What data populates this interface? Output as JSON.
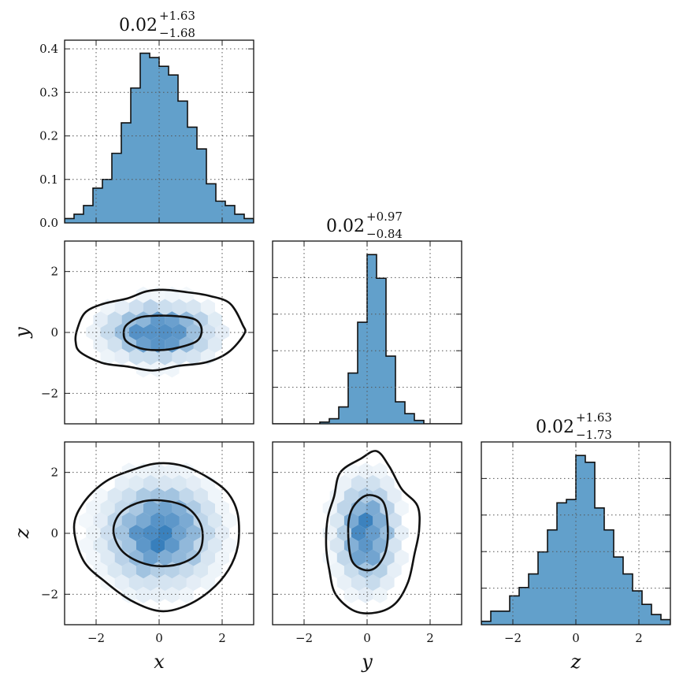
{
  "chart_data": {
    "type": "corner",
    "variables": [
      "x",
      "y",
      "z"
    ],
    "axis_labels": {
      "x": "x",
      "y": "y",
      "z": "z"
    },
    "ranges": {
      "x": [
        -3,
        3
      ],
      "y": [
        -3,
        3
      ],
      "z": [
        -3,
        3
      ]
    },
    "ticks": [
      -2,
      0,
      2
    ],
    "tick_labels": [
      "−2",
      "0",
      "2"
    ],
    "grid": true,
    "hist_color": "#62a0cb",
    "hex_color": "#1f6fb4",
    "contour_color": "#111111",
    "titles": {
      "x": {
        "median": "0.02",
        "plus": "+1.63",
        "minus": "−1.68"
      },
      "y": {
        "median": "0.02",
        "plus": "+0.97",
        "minus": "−0.84"
      },
      "z": {
        "median": "0.02",
        "plus": "+1.63",
        "minus": "−1.73"
      }
    },
    "hist_x": {
      "ylim": [
        0,
        0.42
      ],
      "yticks": [
        0.0,
        0.1,
        0.2,
        0.3,
        0.4
      ],
      "ytick_labels": [
        "0.0",
        "0.1",
        "0.2",
        "0.3",
        "0.4"
      ],
      "bin_edges": [
        -3,
        -2.7,
        -2.4,
        -2.1,
        -1.8,
        -1.5,
        -1.2,
        -0.9,
        -0.6,
        -0.3,
        0,
        0.3,
        0.6,
        0.9,
        1.2,
        1.5,
        1.8,
        2.1,
        2.4,
        2.7,
        3
      ],
      "values": [
        0.01,
        0.02,
        0.04,
        0.08,
        0.1,
        0.16,
        0.23,
        0.31,
        0.39,
        0.38,
        0.36,
        0.34,
        0.28,
        0.22,
        0.17,
        0.09,
        0.05,
        0.04,
        0.02,
        0.01
      ]
    },
    "hist_y": {
      "bin_edges": [
        -3,
        -2.7,
        -2.4,
        -2.1,
        -1.8,
        -1.5,
        -1.2,
        -0.9,
        -0.6,
        -0.3,
        0,
        0.3,
        0.6,
        0.9,
        1.2,
        1.5,
        1.8,
        2.1,
        2.4,
        2.7,
        3
      ],
      "values": [
        0,
        0,
        0,
        0,
        0,
        0.01,
        0.03,
        0.1,
        0.3,
        0.6,
        1.0,
        0.86,
        0.4,
        0.13,
        0.06,
        0.02,
        0,
        0,
        0,
        0
      ]
    },
    "hist_z": {
      "bin_edges": [
        -3,
        -2.7,
        -2.4,
        -2.1,
        -1.8,
        -1.5,
        -1.2,
        -0.9,
        -0.6,
        -0.3,
        0,
        0.3,
        0.6,
        0.9,
        1.2,
        1.5,
        1.8,
        2.1,
        2.4,
        2.7,
        3
      ],
      "values": [
        0.02,
        0.08,
        0.08,
        0.17,
        0.22,
        0.3,
        0.43,
        0.56,
        0.72,
        0.74,
        1.0,
        0.96,
        0.69,
        0.56,
        0.4,
        0.3,
        0.2,
        0.12,
        0.06,
        0.03
      ]
    },
    "panel_xy": {
      "sigma": [
        1.0,
        0.55
      ],
      "contours": [
        {
          "level": "inner",
          "points": [
            [
              -1.12,
              0.05
            ],
            [
              -1.0,
              0.28
            ],
            [
              -0.6,
              0.5
            ],
            [
              0,
              0.55
            ],
            [
              0.6,
              0.53
            ],
            [
              1.15,
              0.42
            ],
            [
              1.35,
              0.1
            ],
            [
              1.2,
              -0.28
            ],
            [
              0.6,
              -0.5
            ],
            [
              0,
              -0.58
            ],
            [
              -0.6,
              -0.52
            ],
            [
              -1.05,
              -0.28
            ]
          ]
        },
        {
          "level": "outer",
          "points": [
            [
              -2.6,
              0.1
            ],
            [
              -2.35,
              0.65
            ],
            [
              -1.8,
              0.93
            ],
            [
              -1.0,
              1.12
            ],
            [
              -0.4,
              1.35
            ],
            [
              0.2,
              1.4
            ],
            [
              0.9,
              1.32
            ],
            [
              1.6,
              1.2
            ],
            [
              2.25,
              0.95
            ],
            [
              2.65,
              0.25
            ],
            [
              2.7,
              -0.05
            ],
            [
              2.2,
              -0.65
            ],
            [
              1.5,
              -0.98
            ],
            [
              0.6,
              -1.1
            ],
            [
              -0.2,
              -1.25
            ],
            [
              -1.0,
              -1.12
            ],
            [
              -1.8,
              -1.0
            ],
            [
              -2.5,
              -0.65
            ],
            [
              -2.65,
              -0.3
            ]
          ]
        }
      ]
    },
    "panel_xz": {
      "sigma": [
        1.0,
        1.0
      ],
      "contours": [
        {
          "level": "inner",
          "points": [
            [
              -1.45,
              0.1
            ],
            [
              -1.2,
              0.7
            ],
            [
              -0.5,
              1.05
            ],
            [
              0.3,
              1.05
            ],
            [
              0.95,
              0.8
            ],
            [
              1.35,
              0.2
            ],
            [
              1.3,
              -0.55
            ],
            [
              0.8,
              -0.95
            ],
            [
              0.1,
              -1.08
            ],
            [
              -0.6,
              -0.95
            ],
            [
              -1.2,
              -0.55
            ]
          ]
        },
        {
          "level": "outer",
          "points": [
            [
              -2.7,
              0.2
            ],
            [
              -2.4,
              1.0
            ],
            [
              -1.7,
              1.7
            ],
            [
              -0.8,
              2.1
            ],
            [
              0,
              2.3
            ],
            [
              0.8,
              2.2
            ],
            [
              1.6,
              1.8
            ],
            [
              2.2,
              1.3
            ],
            [
              2.5,
              0.6
            ],
            [
              2.5,
              -0.4
            ],
            [
              2.2,
              -1.2
            ],
            [
              1.6,
              -1.9
            ],
            [
              0.8,
              -2.4
            ],
            [
              0,
              -2.55
            ],
            [
              -0.9,
              -2.2
            ],
            [
              -1.7,
              -1.6
            ],
            [
              -2.4,
              -0.9
            ]
          ]
        }
      ]
    },
    "panel_yz": {
      "sigma": [
        0.55,
        1.0
      ],
      "contours": [
        {
          "level": "inner",
          "points": [
            [
              -0.6,
              0.2
            ],
            [
              -0.45,
              0.85
            ],
            [
              0,
              1.25
            ],
            [
              0.5,
              1.05
            ],
            [
              0.65,
              0.3
            ],
            [
              0.6,
              -0.55
            ],
            [
              0.3,
              -1.1
            ],
            [
              -0.1,
              -1.2
            ],
            [
              -0.5,
              -0.85
            ]
          ]
        },
        {
          "level": "outer",
          "points": [
            [
              -1.05,
              1.2
            ],
            [
              -0.85,
              2.0
            ],
            [
              -0.2,
              2.45
            ],
            [
              0.3,
              2.7
            ],
            [
              0.7,
              2.2
            ],
            [
              1.1,
              1.45
            ],
            [
              1.6,
              0.9
            ],
            [
              1.65,
              0.1
            ],
            [
              1.5,
              -0.7
            ],
            [
              1.3,
              -1.6
            ],
            [
              0.9,
              -2.3
            ],
            [
              0.3,
              -2.6
            ],
            [
              -0.4,
              -2.55
            ],
            [
              -1.0,
              -2.0
            ],
            [
              -1.2,
              -1.2
            ],
            [
              -1.3,
              -0.4
            ],
            [
              -1.25,
              0.5
            ]
          ]
        }
      ]
    }
  }
}
